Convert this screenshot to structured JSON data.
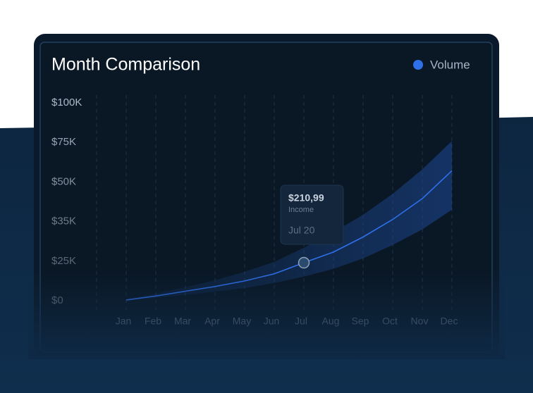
{
  "chart_data": {
    "type": "line",
    "title": "Month Comparison",
    "categories": [
      "Jan",
      "Feb",
      "Mar",
      "Apr",
      "May",
      "Jun",
      "Jul",
      "Aug",
      "Sep",
      "Oct",
      "Nov",
      "Dec"
    ],
    "series": [
      {
        "name": "Volume",
        "color": "#2f6fe8",
        "values": [
          500,
          3000,
          6000,
          9000,
          12500,
          17000,
          24000,
          27300,
          31100,
          35800,
          43700,
          57100
        ],
        "upper": [
          900,
          4500,
          8500,
          12900,
          18300,
          24600,
          28400,
          32300,
          37600,
          45500,
          58000,
          75900
        ],
        "lower": [
          0,
          1800,
          3600,
          5800,
          8000,
          11200,
          15200,
          20100,
          25700,
          29100,
          33000,
          39500
        ]
      }
    ],
    "ylim": [
      0,
      100000
    ],
    "yticks": [
      {
        "value": 0,
        "label": "$0"
      },
      {
        "value": 25000,
        "label": "$25K"
      },
      {
        "value": 35000,
        "label": "$35K"
      },
      {
        "value": 50000,
        "label": "$50K"
      },
      {
        "value": 75000,
        "label": "$75K"
      },
      {
        "value": 100000,
        "label": "$100K"
      }
    ],
    "grid": true,
    "legend": "top-right",
    "tooltip": {
      "value": "$210,99",
      "label": "Income",
      "date": "Jul 20",
      "index": 6
    }
  }
}
